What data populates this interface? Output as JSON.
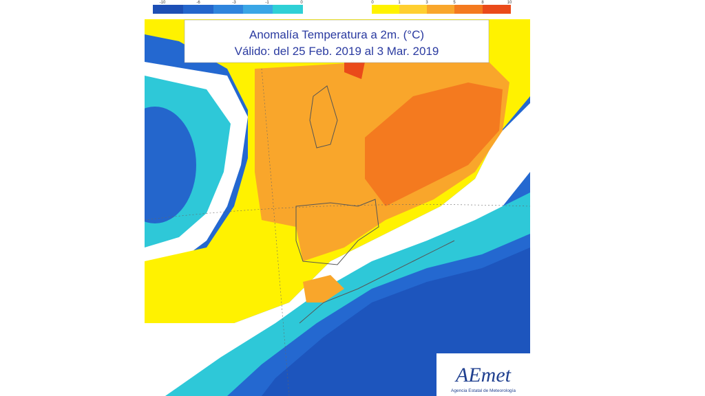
{
  "header": {
    "line1": "Anomalía Temperatura a 2m. (°C)",
    "line2": "Válido: del 25 Feb. 2019 al 3 Mar. 2019"
  },
  "legend": {
    "cold": [
      "-10",
      "-6",
      "-3",
      "-1",
      "0"
    ],
    "warm": [
      "0",
      "1",
      "3",
      "5",
      "8",
      "10"
    ]
  },
  "logo": {
    "name": "AEmet",
    "subtitle": "Agencia Estatal de Meteorología"
  }
}
